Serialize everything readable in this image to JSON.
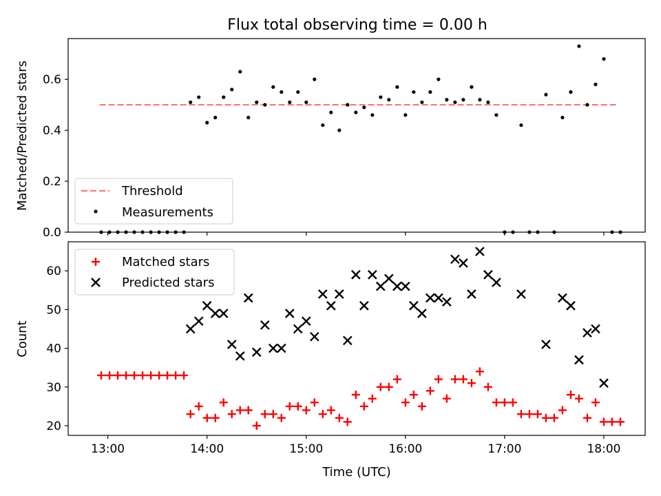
{
  "chart_data": [
    {
      "type": "scatter",
      "title": "Flux total observing time = 0.00 h",
      "xlabel": "",
      "ylabel": "Matched/Predicted stars",
      "ylim": [
        0,
        0.76
      ],
      "xlim": [
        "12:36",
        "18:25"
      ],
      "yticks": [
        "0.0",
        "0.2",
        "0.4",
        "0.6"
      ],
      "legend_position": "lower-left",
      "threshold": {
        "name": "Threshold",
        "value": 0.5,
        "x_start": "12:55",
        "x_end": "18:08",
        "color": "#ff7777",
        "style": "dashed"
      },
      "series": [
        {
          "name": "Measurements",
          "marker": "dot",
          "color": "#000000",
          "points": [
            {
              "x": "12:56",
              "y": 0.0
            },
            {
              "x": "13:01",
              "y": 0.0
            },
            {
              "x": "13:06",
              "y": 0.0
            },
            {
              "x": "13:11",
              "y": 0.0
            },
            {
              "x": "13:16",
              "y": 0.0
            },
            {
              "x": "13:21",
              "y": 0.0
            },
            {
              "x": "13:26",
              "y": 0.0
            },
            {
              "x": "13:31",
              "y": 0.0
            },
            {
              "x": "13:36",
              "y": 0.0
            },
            {
              "x": "13:41",
              "y": 0.0
            },
            {
              "x": "13:46",
              "y": 0.0
            },
            {
              "x": "13:50",
              "y": 0.51
            },
            {
              "x": "13:55",
              "y": 0.53
            },
            {
              "x": "14:00",
              "y": 0.43
            },
            {
              "x": "14:05",
              "y": 0.45
            },
            {
              "x": "14:10",
              "y": 0.53
            },
            {
              "x": "14:15",
              "y": 0.56
            },
            {
              "x": "14:20",
              "y": 0.63
            },
            {
              "x": "14:25",
              "y": 0.45
            },
            {
              "x": "14:30",
              "y": 0.51
            },
            {
              "x": "14:35",
              "y": 0.5
            },
            {
              "x": "14:40",
              "y": 0.57
            },
            {
              "x": "14:45",
              "y": 0.55
            },
            {
              "x": "14:50",
              "y": 0.51
            },
            {
              "x": "14:55",
              "y": 0.55
            },
            {
              "x": "15:00",
              "y": 0.51
            },
            {
              "x": "15:05",
              "y": 0.6
            },
            {
              "x": "15:10",
              "y": 0.42
            },
            {
              "x": "15:15",
              "y": 0.47
            },
            {
              "x": "15:20",
              "y": 0.4
            },
            {
              "x": "15:25",
              "y": 0.5
            },
            {
              "x": "15:30",
              "y": 0.47
            },
            {
              "x": "15:35",
              "y": 0.49
            },
            {
              "x": "15:40",
              "y": 0.46
            },
            {
              "x": "15:45",
              "y": 0.53
            },
            {
              "x": "15:50",
              "y": 0.52
            },
            {
              "x": "15:55",
              "y": 0.57
            },
            {
              "x": "16:00",
              "y": 0.46
            },
            {
              "x": "16:05",
              "y": 0.55
            },
            {
              "x": "16:10",
              "y": 0.51
            },
            {
              "x": "16:15",
              "y": 0.55
            },
            {
              "x": "16:20",
              "y": 0.6
            },
            {
              "x": "16:25",
              "y": 0.52
            },
            {
              "x": "16:30",
              "y": 0.51
            },
            {
              "x": "16:35",
              "y": 0.52
            },
            {
              "x": "16:40",
              "y": 0.57
            },
            {
              "x": "16:45",
              "y": 0.52
            },
            {
              "x": "16:50",
              "y": 0.51
            },
            {
              "x": "16:55",
              "y": 0.46
            },
            {
              "x": "17:00",
              "y": 0.0
            },
            {
              "x": "17:05",
              "y": 0.0
            },
            {
              "x": "17:10",
              "y": 0.42
            },
            {
              "x": "17:15",
              "y": 0.0
            },
            {
              "x": "17:20",
              "y": 0.0
            },
            {
              "x": "17:25",
              "y": 0.54
            },
            {
              "x": "17:30",
              "y": 0.0
            },
            {
              "x": "17:35",
              "y": 0.45
            },
            {
              "x": "17:40",
              "y": 0.55
            },
            {
              "x": "17:45",
              "y": 0.73
            },
            {
              "x": "17:50",
              "y": 0.5
            },
            {
              "x": "17:55",
              "y": 0.58
            },
            {
              "x": "18:00",
              "y": 0.68
            },
            {
              "x": "18:05",
              "y": 0.0
            },
            {
              "x": "18:10",
              "y": 0.0
            }
          ]
        }
      ]
    },
    {
      "type": "scatter",
      "title": "",
      "xlabel": "Time (UTC)",
      "ylabel": "Count",
      "ylim": [
        17.5,
        67.5
      ],
      "xlim": [
        "12:36",
        "18:25"
      ],
      "yticks": [
        "20",
        "30",
        "40",
        "50",
        "60"
      ],
      "xticks": [
        "13:00",
        "14:00",
        "15:00",
        "16:00",
        "17:00",
        "18:00"
      ],
      "legend_position": "top-left",
      "series": [
        {
          "name": "Matched stars",
          "marker": "plus",
          "color": "#ff0000",
          "points": [
            {
              "x": "12:56",
              "y": 33
            },
            {
              "x": "13:01",
              "y": 33
            },
            {
              "x": "13:06",
              "y": 33
            },
            {
              "x": "13:11",
              "y": 33
            },
            {
              "x": "13:16",
              "y": 33
            },
            {
              "x": "13:21",
              "y": 33
            },
            {
              "x": "13:26",
              "y": 33
            },
            {
              "x": "13:31",
              "y": 33
            },
            {
              "x": "13:36",
              "y": 33
            },
            {
              "x": "13:41",
              "y": 33
            },
            {
              "x": "13:46",
              "y": 33
            },
            {
              "x": "13:50",
              "y": 23
            },
            {
              "x": "13:55",
              "y": 25
            },
            {
              "x": "14:00",
              "y": 22
            },
            {
              "x": "14:05",
              "y": 22
            },
            {
              "x": "14:10",
              "y": 26
            },
            {
              "x": "14:15",
              "y": 23
            },
            {
              "x": "14:20",
              "y": 24
            },
            {
              "x": "14:25",
              "y": 24
            },
            {
              "x": "14:30",
              "y": 20
            },
            {
              "x": "14:35",
              "y": 23
            },
            {
              "x": "14:40",
              "y": 23
            },
            {
              "x": "14:45",
              "y": 22
            },
            {
              "x": "14:50",
              "y": 25
            },
            {
              "x": "14:55",
              "y": 25
            },
            {
              "x": "15:00",
              "y": 24
            },
            {
              "x": "15:05",
              "y": 26
            },
            {
              "x": "15:10",
              "y": 23
            },
            {
              "x": "15:15",
              "y": 24
            },
            {
              "x": "15:20",
              "y": 22
            },
            {
              "x": "15:25",
              "y": 21
            },
            {
              "x": "15:30",
              "y": 28
            },
            {
              "x": "15:35",
              "y": 25
            },
            {
              "x": "15:40",
              "y": 27
            },
            {
              "x": "15:45",
              "y": 30
            },
            {
              "x": "15:50",
              "y": 30
            },
            {
              "x": "15:55",
              "y": 32
            },
            {
              "x": "16:00",
              "y": 26
            },
            {
              "x": "16:05",
              "y": 28
            },
            {
              "x": "16:10",
              "y": 25
            },
            {
              "x": "16:15",
              "y": 29
            },
            {
              "x": "16:20",
              "y": 32
            },
            {
              "x": "16:25",
              "y": 27
            },
            {
              "x": "16:30",
              "y": 32
            },
            {
              "x": "16:35",
              "y": 32
            },
            {
              "x": "16:40",
              "y": 31
            },
            {
              "x": "16:45",
              "y": 34
            },
            {
              "x": "16:50",
              "y": 30
            },
            {
              "x": "16:55",
              "y": 26
            },
            {
              "x": "17:00",
              "y": 26
            },
            {
              "x": "17:05",
              "y": 26
            },
            {
              "x": "17:10",
              "y": 23
            },
            {
              "x": "17:15",
              "y": 23
            },
            {
              "x": "17:20",
              "y": 23
            },
            {
              "x": "17:25",
              "y": 22
            },
            {
              "x": "17:30",
              "y": 22
            },
            {
              "x": "17:35",
              "y": 24
            },
            {
              "x": "17:40",
              "y": 28
            },
            {
              "x": "17:45",
              "y": 27
            },
            {
              "x": "17:50",
              "y": 22
            },
            {
              "x": "17:55",
              "y": 26
            },
            {
              "x": "18:00",
              "y": 21
            },
            {
              "x": "18:05",
              "y": 21
            },
            {
              "x": "18:10",
              "y": 21
            }
          ]
        },
        {
          "name": "Predicted stars",
          "marker": "x",
          "color": "#000000",
          "points": [
            {
              "x": "13:50",
              "y": 45
            },
            {
              "x": "13:55",
              "y": 47
            },
            {
              "x": "14:00",
              "y": 51
            },
            {
              "x": "14:05",
              "y": 49
            },
            {
              "x": "14:10",
              "y": 49
            },
            {
              "x": "14:15",
              "y": 41
            },
            {
              "x": "14:20",
              "y": 38
            },
            {
              "x": "14:25",
              "y": 53
            },
            {
              "x": "14:30",
              "y": 39
            },
            {
              "x": "14:35",
              "y": 46
            },
            {
              "x": "14:40",
              "y": 40
            },
            {
              "x": "14:45",
              "y": 40
            },
            {
              "x": "14:50",
              "y": 49
            },
            {
              "x": "14:55",
              "y": 45
            },
            {
              "x": "15:00",
              "y": 47
            },
            {
              "x": "15:05",
              "y": 43
            },
            {
              "x": "15:10",
              "y": 54
            },
            {
              "x": "15:15",
              "y": 51
            },
            {
              "x": "15:20",
              "y": 54
            },
            {
              "x": "15:25",
              "y": 42
            },
            {
              "x": "15:30",
              "y": 59
            },
            {
              "x": "15:35",
              "y": 51
            },
            {
              "x": "15:40",
              "y": 59
            },
            {
              "x": "15:45",
              "y": 56
            },
            {
              "x": "15:50",
              "y": 58
            },
            {
              "x": "15:55",
              "y": 56
            },
            {
              "x": "16:00",
              "y": 56
            },
            {
              "x": "16:05",
              "y": 51
            },
            {
              "x": "16:10",
              "y": 49
            },
            {
              "x": "16:15",
              "y": 53
            },
            {
              "x": "16:20",
              "y": 53
            },
            {
              "x": "16:25",
              "y": 52
            },
            {
              "x": "16:30",
              "y": 63
            },
            {
              "x": "16:35",
              "y": 62
            },
            {
              "x": "16:40",
              "y": 54
            },
            {
              "x": "16:45",
              "y": 65
            },
            {
              "x": "16:50",
              "y": 59
            },
            {
              "x": "16:55",
              "y": 57
            },
            {
              "x": "17:10",
              "y": 54
            },
            {
              "x": "17:25",
              "y": 41
            },
            {
              "x": "17:35",
              "y": 53
            },
            {
              "x": "17:40",
              "y": 51
            },
            {
              "x": "17:45",
              "y": 37
            },
            {
              "x": "17:50",
              "y": 44
            },
            {
              "x": "17:55",
              "y": 45
            },
            {
              "x": "18:00",
              "y": 31
            }
          ]
        }
      ]
    }
  ]
}
